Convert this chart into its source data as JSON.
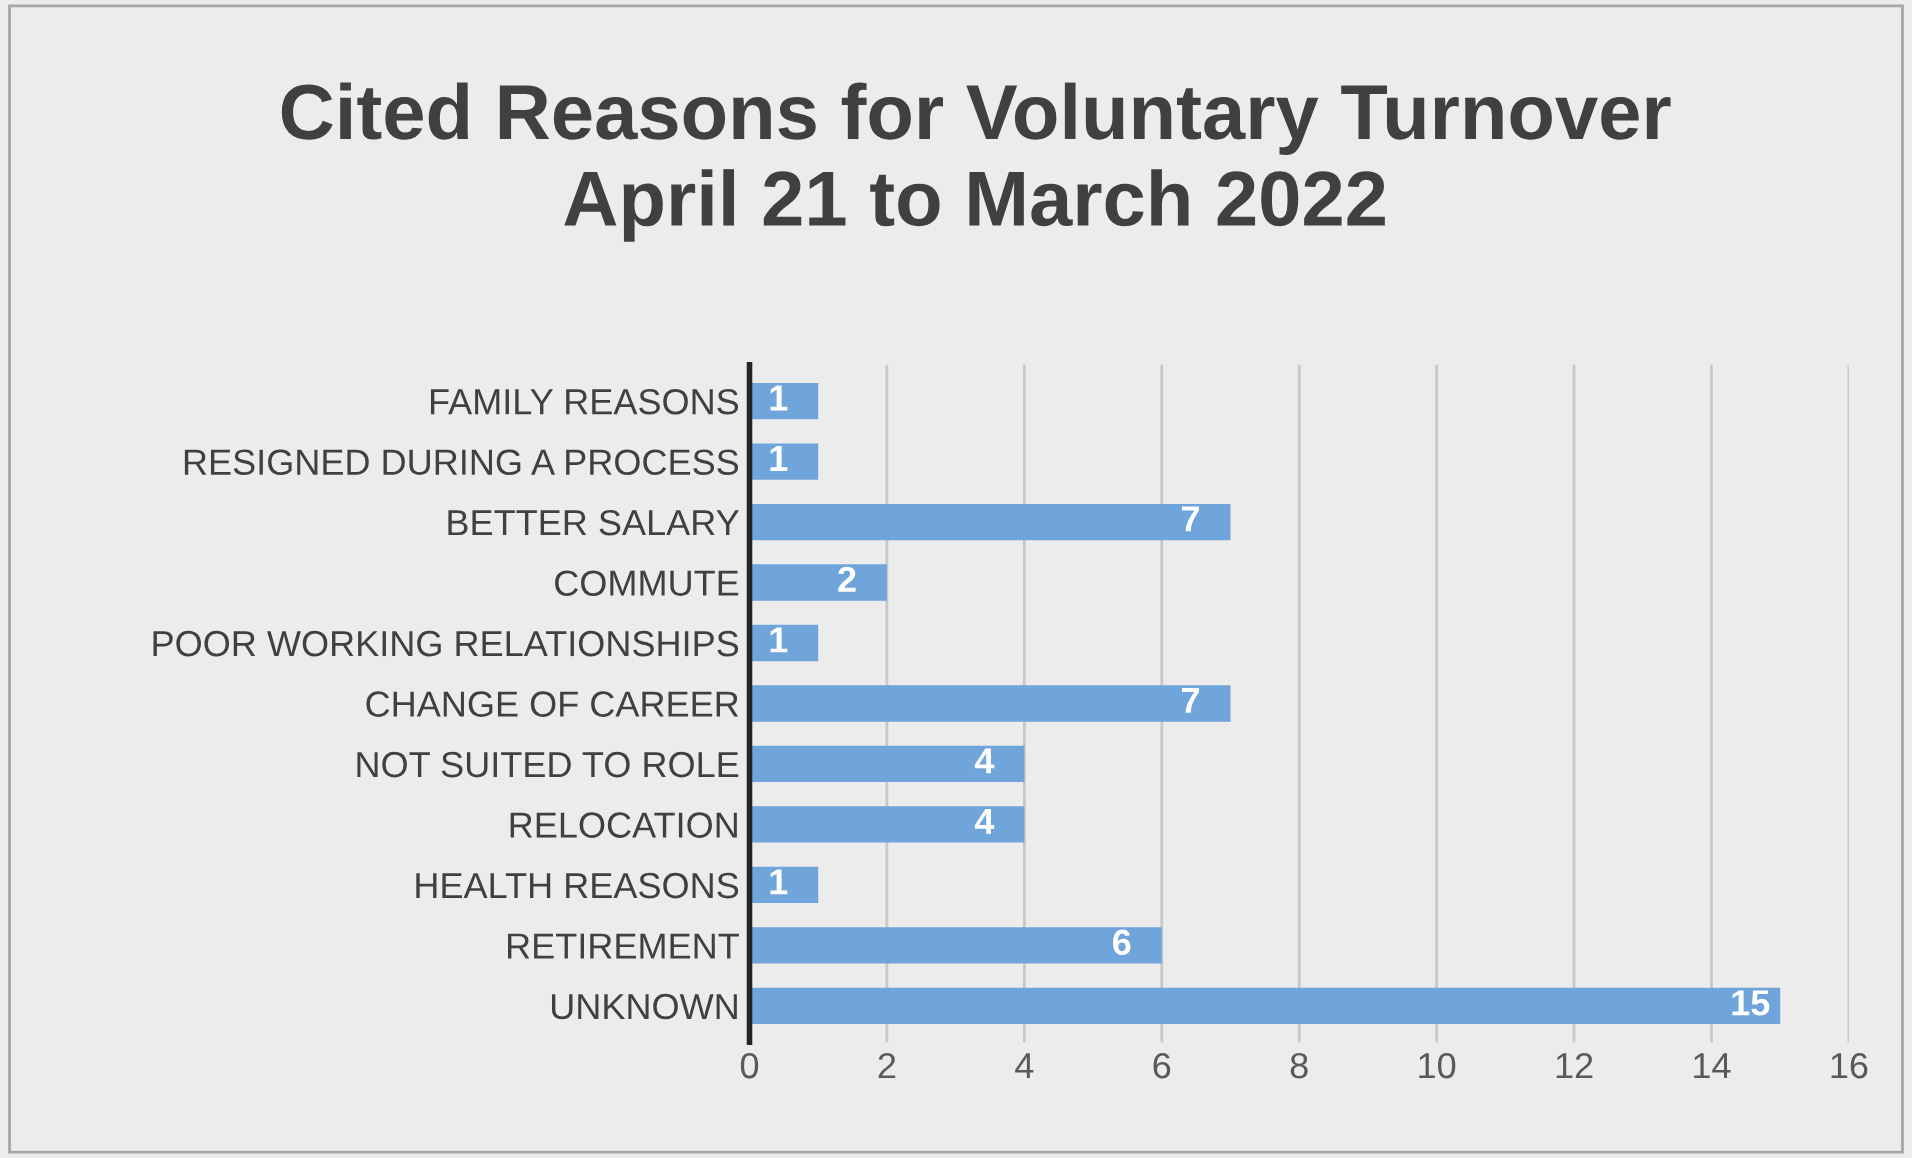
{
  "chart_data": {
    "type": "bar",
    "orientation": "horizontal",
    "title": "Cited Reasons for Voluntary Turnover\nApril 21 to March 2022",
    "categories": [
      "FAMILY REASONS",
      "RESIGNED DURING A PROCESS",
      "BETTER SALARY",
      "COMMUTE",
      "POOR WORKING RELATIONSHIPS",
      "CHANGE OF CAREER",
      "NOT SUITED TO ROLE",
      "RELOCATION",
      "HEALTH REASONS",
      "RETIREMENT",
      "UNKNOWN"
    ],
    "values": [
      1,
      1,
      7,
      2,
      1,
      7,
      4,
      4,
      1,
      6,
      15
    ],
    "color": "#6fa5db",
    "xlim": [
      0,
      16
    ],
    "xticks": [
      0,
      2,
      4,
      6,
      8,
      10,
      12,
      14,
      16
    ],
    "grid": "x",
    "data_labels": true
  }
}
